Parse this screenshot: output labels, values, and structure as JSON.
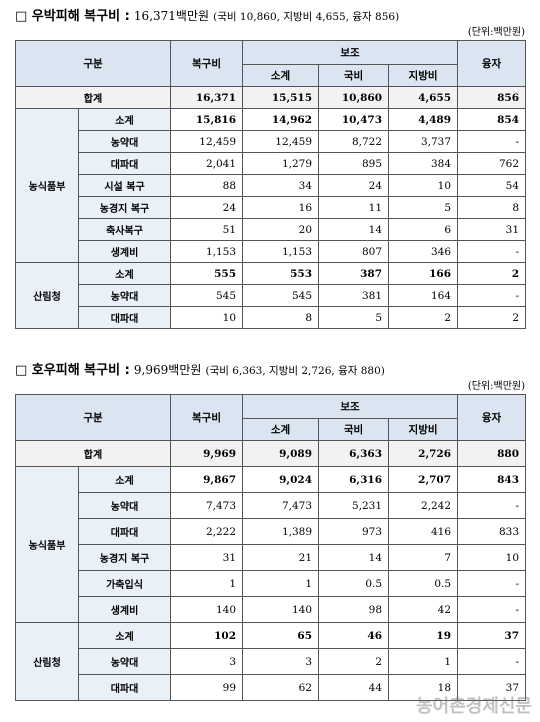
{
  "sections": [
    {
      "heading": {
        "label": "□ 우박피해 복구비 :",
        "total": "16,371백만원",
        "detail": "(국비 10,860, 지방비 4,655, 융자 856)"
      },
      "unit": "(단위:백만원)",
      "table": {
        "header": {
          "division": "구분",
          "cost": "복구비",
          "subsidy": "보조",
          "subsidy_columns": [
            "소계",
            "국비",
            "지방비"
          ],
          "loan": "융자"
        },
        "total_row": {
          "label": "합계",
          "values": [
            "16,371",
            "15,515",
            "10,860",
            "4,655",
            "856"
          ]
        },
        "groups": [
          {
            "name": "농식품부",
            "rows": [
              {
                "label": "소계",
                "values": [
                  "15,816",
                  "14,962",
                  "10,473",
                  "4,489",
                  "854"
                ]
              },
              {
                "label": "농약대",
                "values": [
                  "12,459",
                  "12,459",
                  "8,722",
                  "3,737",
                  "-"
                ]
              },
              {
                "label": "대파대",
                "values": [
                  "2,041",
                  "1,279",
                  "895",
                  "384",
                  "762"
                ]
              },
              {
                "label": "시설 복구",
                "values": [
                  "88",
                  "34",
                  "24",
                  "10",
                  "54"
                ]
              },
              {
                "label": "농경지 복구",
                "values": [
                  "24",
                  "16",
                  "11",
                  "5",
                  "8"
                ]
              },
              {
                "label": "축사복구",
                "values": [
                  "51",
                  "20",
                  "14",
                  "6",
                  "31"
                ]
              },
              {
                "label": "생계비",
                "values": [
                  "1,153",
                  "1,153",
                  "807",
                  "346",
                  "-"
                ]
              }
            ]
          },
          {
            "name": "산림청",
            "rows": [
              {
                "label": "소계",
                "values": [
                  "555",
                  "553",
                  "387",
                  "166",
                  "2"
                ]
              },
              {
                "label": "농약대",
                "values": [
                  "545",
                  "545",
                  "381",
                  "164",
                  "-"
                ]
              },
              {
                "label": "대파대",
                "values": [
                  "10",
                  "8",
                  "5",
                  "2",
                  "2"
                ]
              }
            ]
          }
        ]
      }
    },
    {
      "heading": {
        "label": "□ 호우피해 복구비 :",
        "total": "9,969백만원",
        "detail": "(국비 6,363, 지방비 2,726, 융자 880)"
      },
      "unit": "(단위:백만원)",
      "table": {
        "header": {
          "division": "구분",
          "cost": "복구비",
          "subsidy": "보조",
          "subsidy_columns": [
            "소계",
            "국비",
            "지방비"
          ],
          "loan": "융자"
        },
        "total_row": {
          "label": "합계",
          "values": [
            "9,969",
            "9,089",
            "6,363",
            "2,726",
            "880"
          ]
        },
        "groups": [
          {
            "name": "농식품부",
            "rows": [
              {
                "label": "소계",
                "values": [
                  "9,867",
                  "9,024",
                  "6,316",
                  "2,707",
                  "843"
                ]
              },
              {
                "label": "농약대",
                "values": [
                  "7,473",
                  "7,473",
                  "5,231",
                  "2,242",
                  "-"
                ]
              },
              {
                "label": "대파대",
                "values": [
                  "2,222",
                  "1,389",
                  "973",
                  "416",
                  "833"
                ]
              },
              {
                "label": "농경지 복구",
                "values": [
                  "31",
                  "21",
                  "14",
                  "7",
                  "10"
                ]
              },
              {
                "label": "가축입식",
                "values": [
                  "1",
                  "1",
                  "0.5",
                  "0.5",
                  "-"
                ]
              },
              {
                "label": "생계비",
                "values": [
                  "140",
                  "140",
                  "98",
                  "42",
                  "-"
                ]
              }
            ]
          },
          {
            "name": "산림청",
            "rows": [
              {
                "label": "소계",
                "values": [
                  "102",
                  "65",
                  "46",
                  "19",
                  "37"
                ]
              },
              {
                "label": "농약대",
                "values": [
                  "3",
                  "3",
                  "2",
                  "1",
                  "-"
                ]
              },
              {
                "label": "대파대",
                "values": [
                  "99",
                  "62",
                  "44",
                  "18",
                  "37"
                ]
              }
            ]
          }
        ]
      }
    }
  ],
  "watermark": "농어촌경제신문"
}
